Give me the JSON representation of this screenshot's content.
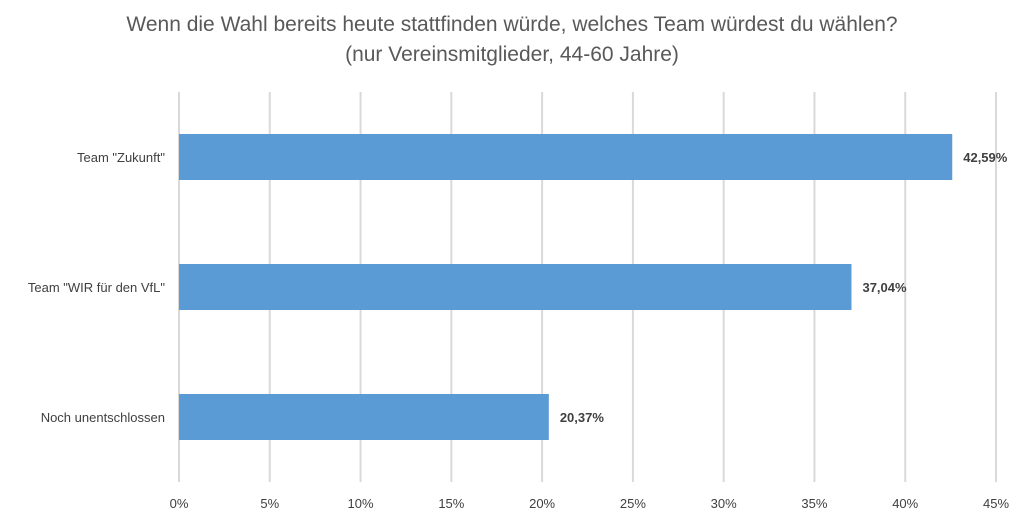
{
  "chart_data": {
    "type": "bar",
    "orientation": "horizontal",
    "title": "Wenn die Wahl bereits heute stattfinden würde, welches Team würdest du wählen? (nur Vereinsmitglieder, 44-60 Jahre)",
    "categories": [
      "Team \"Zukunft\"",
      "Team \"WIR für den VfL\"",
      "Noch unentschlossen"
    ],
    "values": [
      42.59,
      37.04,
      20.37
    ],
    "data_labels": [
      "42,59%",
      "37,04%",
      "20,37%"
    ],
    "xlim": [
      0,
      45
    ],
    "x_ticks": [
      0,
      5,
      10,
      15,
      20,
      25,
      30,
      35,
      40,
      45
    ],
    "x_tick_labels": [
      "0%",
      "5%",
      "10%",
      "15%",
      "20%",
      "25%",
      "30%",
      "35%",
      "40%",
      "45%"
    ],
    "xlabel": "",
    "ylabel": "",
    "grid": "vertical",
    "legend": "none",
    "colors": {
      "bar": "#5b9bd5",
      "grid": "#d9d9d9",
      "title": "#595959",
      "text": "#404040"
    }
  }
}
